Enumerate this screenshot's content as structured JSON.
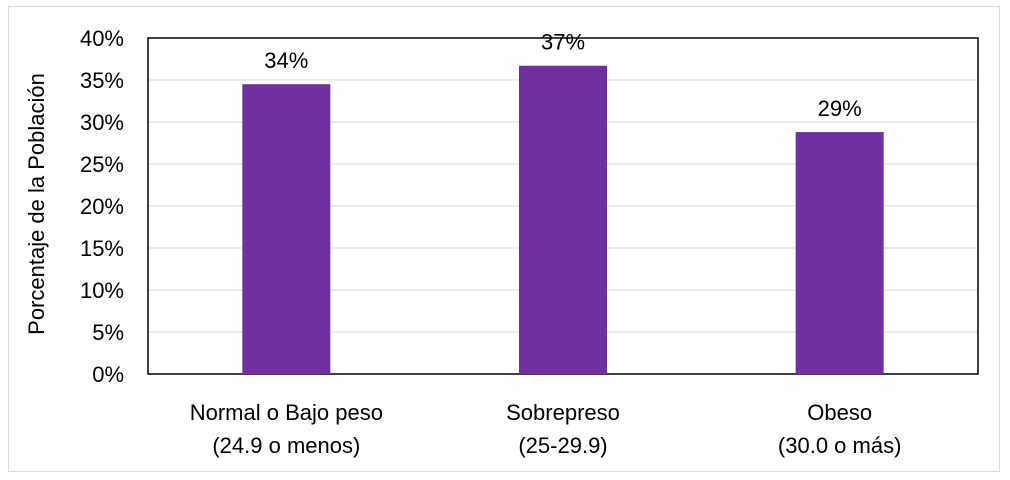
{
  "chart_data": {
    "type": "bar",
    "title": "",
    "xlabel": "",
    "ylabel": "Porcentaje de la Población",
    "categories": [
      [
        "Normal o Bajo peso",
        "(24.9 o menos)"
      ],
      [
        "Sobrepreso",
        "(25-29.9)"
      ],
      [
        "Obeso",
        "(30.0 o más)"
      ]
    ],
    "values": [
      34.5,
      36.7,
      28.8
    ],
    "data_labels": [
      "34%",
      "37%",
      "29%"
    ],
    "ylim": [
      0,
      40
    ],
    "y_ticks": [
      0,
      5,
      10,
      15,
      20,
      25,
      30,
      35,
      40
    ],
    "y_tick_labels": [
      "0%",
      "5%",
      "10%",
      "15%",
      "20%",
      "25%",
      "30%",
      "35%",
      "40%"
    ],
    "grid": true,
    "legend": "none",
    "bar_color": "#7030a0"
  }
}
